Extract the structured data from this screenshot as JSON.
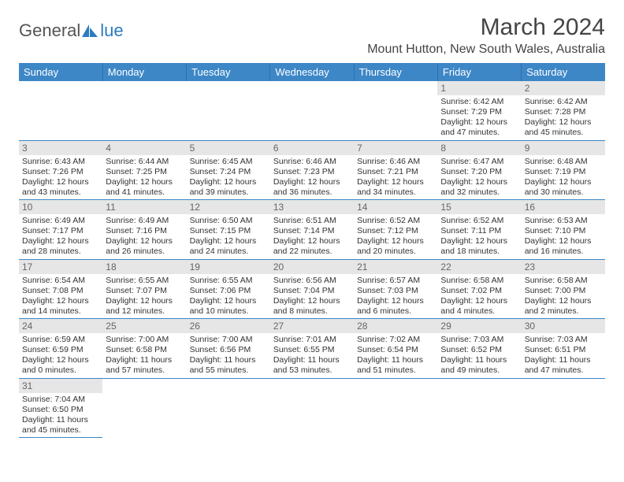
{
  "logo": {
    "text1": "General",
    "text2": "lue"
  },
  "title": "March 2024",
  "location": "Mount Hutton, New South Wales, Australia",
  "columns": [
    "Sunday",
    "Monday",
    "Tuesday",
    "Wednesday",
    "Thursday",
    "Friday",
    "Saturday"
  ],
  "colors": {
    "header_bg": "#3d87c7",
    "header_text": "#ffffff",
    "daynum_bg": "#e6e6e6",
    "daynum_text": "#666666",
    "body_text": "#333333",
    "border": "#3d87c7",
    "accent": "#2b7bbf",
    "logo_gray": "#555555"
  },
  "fonts": {
    "title_pt": 30,
    "location_pt": 16,
    "header_pt": 13,
    "daynum_pt": 12,
    "body_pt": 10.5
  },
  "weeks": [
    [
      null,
      null,
      null,
      null,
      null,
      {
        "n": "1",
        "sr": "6:42 AM",
        "ss": "7:29 PM",
        "dl": "12 hours and 47 minutes."
      },
      {
        "n": "2",
        "sr": "6:42 AM",
        "ss": "7:28 PM",
        "dl": "12 hours and 45 minutes."
      }
    ],
    [
      {
        "n": "3",
        "sr": "6:43 AM",
        "ss": "7:26 PM",
        "dl": "12 hours and 43 minutes."
      },
      {
        "n": "4",
        "sr": "6:44 AM",
        "ss": "7:25 PM",
        "dl": "12 hours and 41 minutes."
      },
      {
        "n": "5",
        "sr": "6:45 AM",
        "ss": "7:24 PM",
        "dl": "12 hours and 39 minutes."
      },
      {
        "n": "6",
        "sr": "6:46 AM",
        "ss": "7:23 PM",
        "dl": "12 hours and 36 minutes."
      },
      {
        "n": "7",
        "sr": "6:46 AM",
        "ss": "7:21 PM",
        "dl": "12 hours and 34 minutes."
      },
      {
        "n": "8",
        "sr": "6:47 AM",
        "ss": "7:20 PM",
        "dl": "12 hours and 32 minutes."
      },
      {
        "n": "9",
        "sr": "6:48 AM",
        "ss": "7:19 PM",
        "dl": "12 hours and 30 minutes."
      }
    ],
    [
      {
        "n": "10",
        "sr": "6:49 AM",
        "ss": "7:17 PM",
        "dl": "12 hours and 28 minutes."
      },
      {
        "n": "11",
        "sr": "6:49 AM",
        "ss": "7:16 PM",
        "dl": "12 hours and 26 minutes."
      },
      {
        "n": "12",
        "sr": "6:50 AM",
        "ss": "7:15 PM",
        "dl": "12 hours and 24 minutes."
      },
      {
        "n": "13",
        "sr": "6:51 AM",
        "ss": "7:14 PM",
        "dl": "12 hours and 22 minutes."
      },
      {
        "n": "14",
        "sr": "6:52 AM",
        "ss": "7:12 PM",
        "dl": "12 hours and 20 minutes."
      },
      {
        "n": "15",
        "sr": "6:52 AM",
        "ss": "7:11 PM",
        "dl": "12 hours and 18 minutes."
      },
      {
        "n": "16",
        "sr": "6:53 AM",
        "ss": "7:10 PM",
        "dl": "12 hours and 16 minutes."
      }
    ],
    [
      {
        "n": "17",
        "sr": "6:54 AM",
        "ss": "7:08 PM",
        "dl": "12 hours and 14 minutes."
      },
      {
        "n": "18",
        "sr": "6:55 AM",
        "ss": "7:07 PM",
        "dl": "12 hours and 12 minutes."
      },
      {
        "n": "19",
        "sr": "6:55 AM",
        "ss": "7:06 PM",
        "dl": "12 hours and 10 minutes."
      },
      {
        "n": "20",
        "sr": "6:56 AM",
        "ss": "7:04 PM",
        "dl": "12 hours and 8 minutes."
      },
      {
        "n": "21",
        "sr": "6:57 AM",
        "ss": "7:03 PM",
        "dl": "12 hours and 6 minutes."
      },
      {
        "n": "22",
        "sr": "6:58 AM",
        "ss": "7:02 PM",
        "dl": "12 hours and 4 minutes."
      },
      {
        "n": "23",
        "sr": "6:58 AM",
        "ss": "7:00 PM",
        "dl": "12 hours and 2 minutes."
      }
    ],
    [
      {
        "n": "24",
        "sr": "6:59 AM",
        "ss": "6:59 PM",
        "dl": "12 hours and 0 minutes."
      },
      {
        "n": "25",
        "sr": "7:00 AM",
        "ss": "6:58 PM",
        "dl": "11 hours and 57 minutes."
      },
      {
        "n": "26",
        "sr": "7:00 AM",
        "ss": "6:56 PM",
        "dl": "11 hours and 55 minutes."
      },
      {
        "n": "27",
        "sr": "7:01 AM",
        "ss": "6:55 PM",
        "dl": "11 hours and 53 minutes."
      },
      {
        "n": "28",
        "sr": "7:02 AM",
        "ss": "6:54 PM",
        "dl": "11 hours and 51 minutes."
      },
      {
        "n": "29",
        "sr": "7:03 AM",
        "ss": "6:52 PM",
        "dl": "11 hours and 49 minutes."
      },
      {
        "n": "30",
        "sr": "7:03 AM",
        "ss": "6:51 PM",
        "dl": "11 hours and 47 minutes."
      }
    ],
    [
      {
        "n": "31",
        "sr": "7:04 AM",
        "ss": "6:50 PM",
        "dl": "11 hours and 45 minutes."
      },
      null,
      null,
      null,
      null,
      null,
      null
    ]
  ],
  "labels": {
    "sunrise": "Sunrise: ",
    "sunset": "Sunset: ",
    "daylight": "Daylight: "
  }
}
